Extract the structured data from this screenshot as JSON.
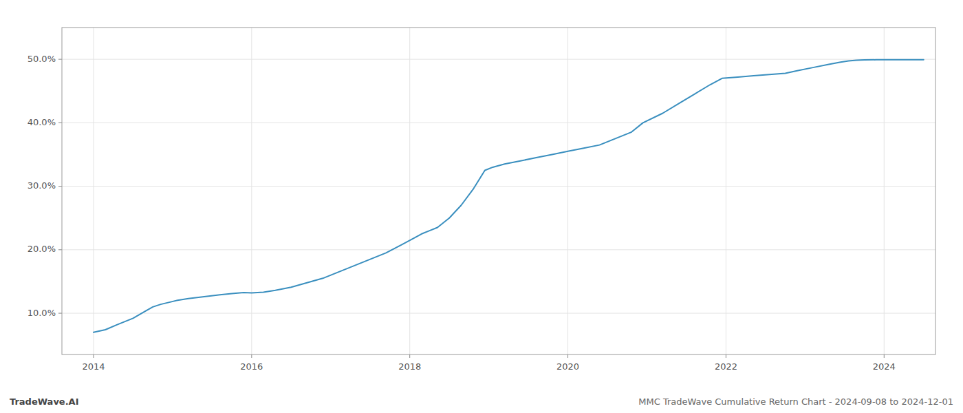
{
  "chart_data": {
    "type": "line",
    "title": "MMC TradeWave Cumulative Return Chart - 2024-09-08 to 2024-12-01",
    "annotations": [
      "TradeWave.AI"
    ],
    "color": "#3a8fbf",
    "grid": true,
    "x": [
      2014.0,
      2014.15,
      2014.3,
      2014.5,
      2014.65,
      2014.75,
      2014.85,
      2014.95,
      2015.05,
      2015.2,
      2015.4,
      2015.6,
      2015.75,
      2015.9,
      2016.0,
      2016.15,
      2016.3,
      2016.5,
      2016.7,
      2016.9,
      2017.1,
      2017.3,
      2017.5,
      2017.7,
      2017.9,
      2018.05,
      2018.15,
      2018.25,
      2018.35,
      2018.5,
      2018.65,
      2018.8,
      2018.95,
      2019.05,
      2019.2,
      2019.4,
      2019.6,
      2019.8,
      2020.0,
      2020.2,
      2020.4,
      2020.6,
      2020.8,
      2020.95,
      2021.2,
      2021.4,
      2021.6,
      2021.8,
      2021.95,
      2022.15,
      2022.35,
      2022.55,
      2022.75,
      2022.9,
      2023.1,
      2023.3,
      2023.45,
      2023.55,
      2023.65,
      2023.75,
      2023.9,
      2024.0,
      2024.15,
      2024.3,
      2024.5
    ],
    "values": [
      7.0,
      7.4,
      8.2,
      9.2,
      10.3,
      11.0,
      11.4,
      11.7,
      12.0,
      12.3,
      12.6,
      12.9,
      13.1,
      13.25,
      13.2,
      13.3,
      13.6,
      14.1,
      14.8,
      15.5,
      16.5,
      17.5,
      18.5,
      19.5,
      20.8,
      21.8,
      22.5,
      23.0,
      23.5,
      25.0,
      27.0,
      29.5,
      32.5,
      33.0,
      33.5,
      34.0,
      34.5,
      35.0,
      35.5,
      36.0,
      36.5,
      37.5,
      38.5,
      40.0,
      41.5,
      43.0,
      44.5,
      46.0,
      47.0,
      47.2,
      47.4,
      47.6,
      47.8,
      48.2,
      48.7,
      49.2,
      49.55,
      49.75,
      49.85,
      49.9,
      49.92,
      49.93,
      49.93,
      49.93,
      49.93
    ],
    "xlim": [
      2013.6,
      2024.65
    ],
    "xticks": [
      2014,
      2016,
      2018,
      2020,
      2022,
      2024
    ],
    "ylim": [
      3.5,
      55
    ],
    "yticks": [
      {
        "value": 10.0,
        "label": "10.0%"
      },
      {
        "value": 20.0,
        "label": "20.0%"
      },
      {
        "value": 30.0,
        "label": "30.0%"
      },
      {
        "value": 40.0,
        "label": "40.0%"
      },
      {
        "value": 50.0,
        "label": "50.0%"
      }
    ]
  }
}
